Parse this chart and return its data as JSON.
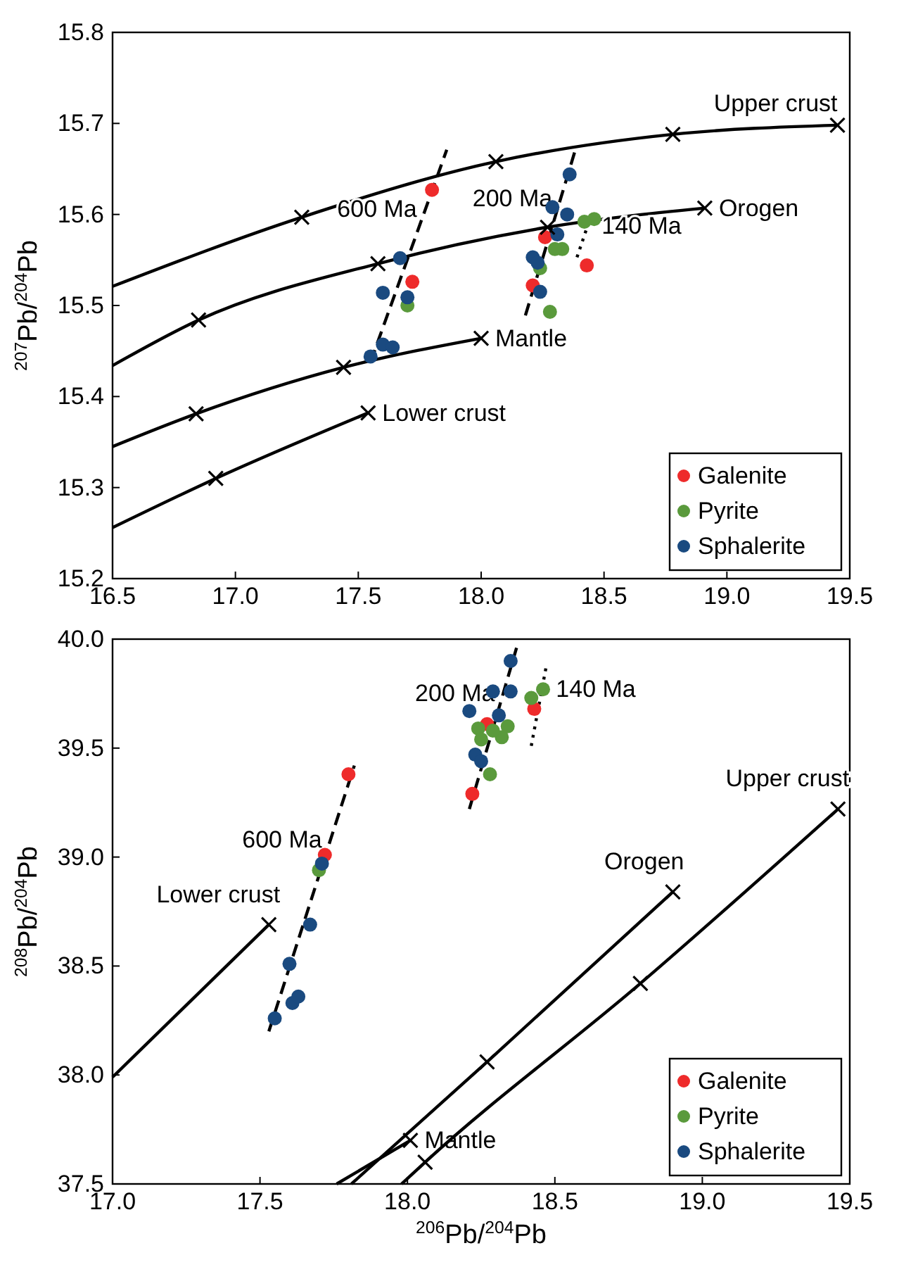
{
  "chart_data": [
    {
      "type": "scatter",
      "ylabel": "$^{207}$Pb/$^{204}$Pb",
      "xlim": [
        16.5,
        19.5
      ],
      "ylim": [
        15.2,
        15.8
      ],
      "xticks": [
        16.5,
        {
          "value": 17,
          "label": "17.0"
        },
        17.5,
        {
          "value": 18,
          "label": "18.0"
        },
        18.5,
        {
          "value": 19,
          "label": "19.0"
        },
        19.5
      ],
      "yticks": [
        15.2,
        15.3,
        15.4,
        15.5,
        15.6,
        15.7,
        15.8
      ],
      "grid": false,
      "legend": "bottom right",
      "series": [
        {
          "type": "line",
          "name": "Upper crust",
          "color": "#000000",
          "marker": "none",
          "line_style": "solid",
          "x": [
            16.5,
            17.27,
            18.06,
            18.78,
            19.45
          ],
          "values": [
            15.521,
            15.597,
            15.658,
            15.688,
            15.698
          ]
        },
        {
          "type": "line",
          "name": "Orogen",
          "color": "#000000",
          "marker": "none",
          "line_style": "solid",
          "x": [
            16.5,
            16.85,
            17.58,
            18.27,
            18.91
          ],
          "values": [
            15.434,
            15.484,
            15.546,
            15.586,
            15.607
          ]
        },
        {
          "type": "line",
          "name": "Mantle",
          "color": "#000000",
          "marker": "none",
          "line_style": "solid",
          "x": [
            16.5,
            16.84,
            17.44,
            18.0
          ],
          "values": [
            15.345,
            15.381,
            15.432,
            15.464
          ]
        },
        {
          "type": "line",
          "name": "Lower crust",
          "color": "#000000",
          "marker": "none",
          "line_style": "solid",
          "x": [
            16.5,
            16.92,
            17.54
          ],
          "values": [
            15.256,
            15.31,
            15.382
          ]
        },
        {
          "type": "line",
          "name": "600 Ma",
          "color": "#000000",
          "marker": "none",
          "line_style": "dashed",
          "x": [
            17.55,
            17.86
          ],
          "values": [
            15.438,
            15.671
          ]
        },
        {
          "type": "line",
          "name": "200 Ma",
          "color": "#000000",
          "marker": "none",
          "line_style": "dashed",
          "x": [
            18.18,
            18.38
          ],
          "values": [
            15.489,
            15.668
          ]
        },
        {
          "type": "line",
          "name": "140 Ma",
          "color": "#000000",
          "marker": "none",
          "line_style": "dotted",
          "x": [
            18.39,
            18.45
          ],
          "values": [
            15.553,
            15.601
          ]
        },
        {
          "name": "Galenite",
          "color": "#ee2b2b",
          "marker": "circle",
          "x": [
            17.8,
            17.72,
            18.26,
            18.43,
            18.21
          ],
          "values": [
            15.627,
            15.526,
            15.575,
            15.544,
            15.522
          ]
        },
        {
          "name": "Pyrite",
          "color": "#5a9a3c",
          "marker": "circle",
          "x": [
            17.7,
            18.46,
            18.42,
            18.33,
            18.3,
            18.28,
            18.24
          ],
          "values": [
            15.5,
            15.595,
            15.592,
            15.562,
            15.562,
            15.493,
            15.541
          ]
        },
        {
          "name": "Sphalerite",
          "color": "#1a4a80",
          "marker": "circle",
          "x": [
            17.67,
            17.6,
            17.7,
            17.55,
            17.6,
            17.64,
            18.36,
            18.29,
            18.35,
            18.31,
            18.21,
            18.23,
            18.24
          ],
          "values": [
            15.552,
            15.514,
            15.509,
            15.444,
            15.457,
            15.454,
            15.644,
            15.608,
            15.6,
            15.578,
            15.553,
            15.547,
            15.515
          ]
        },
        {
          "color": "#000000",
          "marker": "cross",
          "x": [
            17.27,
            18.06,
            18.78,
            19.45,
            16.85,
            17.58,
            18.27,
            18.91,
            16.84,
            17.44,
            18.0,
            16.92,
            17.54
          ],
          "values": [
            15.597,
            15.658,
            15.688,
            15.698,
            15.484,
            15.546,
            15.586,
            15.607,
            15.381,
            15.432,
            15.464,
            15.31,
            15.382
          ]
        }
      ]
    },
    {
      "type": "scatter",
      "ylabel": "$^{208}$Pb/$^{204}$Pb",
      "xlabel": "$^{206}$Pb/$^{204}$Pb",
      "xlim": [
        17,
        19.5
      ],
      "ylim": [
        37.5,
        40
      ],
      "xticks": [
        {
          "value": 17,
          "label": "17.0"
        },
        17.5,
        {
          "value": 18,
          "label": "18.0"
        },
        18.5,
        {
          "value": 19,
          "label": "19.0"
        },
        19.5
      ],
      "yticks": [
        37.5,
        {
          "value": 38,
          "label": "38.0"
        },
        38.5,
        {
          "value": 39,
          "label": "39.0"
        },
        39.5,
        {
          "value": 40,
          "label": "40.0"
        }
      ],
      "grid": false,
      "legend": "bottom right",
      "series": [
        {
          "type": "line",
          "name": "Lower crust",
          "color": "#000000",
          "marker": "none",
          "line_style": "solid",
          "x": [
            17.0,
            17.53
          ],
          "values": [
            37.99,
            38.69
          ]
        },
        {
          "type": "line",
          "name": "Mantle",
          "color": "#000000",
          "marker": "none",
          "line_style": "solid",
          "x": [
            17.76,
            18.01
          ],
          "values": [
            37.5,
            37.7
          ]
        },
        {
          "type": "line",
          "name": "Orogen",
          "color": "#000000",
          "marker": "none",
          "line_style": "solid",
          "x": [
            17.81,
            18.27,
            18.9
          ],
          "values": [
            37.5,
            38.06,
            38.84
          ]
        },
        {
          "type": "line",
          "name": "Upper crust",
          "color": "#000000",
          "marker": "none",
          "line_style": "solid",
          "x": [
            17.98,
            18.06,
            18.79,
            19.46
          ],
          "values": [
            37.5,
            37.6,
            38.42,
            39.22
          ]
        },
        {
          "type": "line",
          "name": "600 Ma",
          "color": "#000000",
          "marker": "none",
          "line_style": "dashed",
          "x": [
            17.53,
            17.82
          ],
          "values": [
            38.2,
            39.42
          ]
        },
        {
          "type": "line",
          "name": "200 Ma",
          "color": "#000000",
          "marker": "none",
          "line_style": "dashed",
          "x": [
            18.21,
            18.37
          ],
          "values": [
            39.22,
            39.96
          ]
        },
        {
          "type": "line",
          "name": "140 Ma",
          "color": "#000000",
          "marker": "none",
          "line_style": "dotted",
          "x": [
            18.42,
            18.47
          ],
          "values": [
            39.51,
            39.87
          ]
        },
        {
          "color": "#000000",
          "marker": "cross",
          "x": [
            17.53,
            18.27,
            18.9,
            18.06,
            18.79,
            19.46,
            18.01
          ],
          "values": [
            38.69,
            38.06,
            38.84,
            37.6,
            38.42,
            39.22,
            37.7
          ]
        },
        {
          "name": "Galenite",
          "color": "#ee2b2b",
          "marker": "circle",
          "x": [
            17.8,
            17.72,
            18.22,
            18.27,
            18.43
          ],
          "values": [
            39.38,
            39.01,
            39.29,
            39.61,
            39.68
          ]
        },
        {
          "name": "Pyrite",
          "color": "#5a9a3c",
          "marker": "circle",
          "x": [
            17.7,
            18.42,
            18.46,
            18.24,
            18.25,
            18.34,
            18.32,
            18.28,
            18.29
          ],
          "values": [
            38.94,
            39.73,
            39.77,
            39.59,
            39.54,
            39.6,
            39.55,
            39.38,
            39.58
          ]
        },
        {
          "name": "Sphalerite",
          "color": "#1a4a80",
          "marker": "circle",
          "x": [
            17.71,
            17.67,
            17.6,
            17.61,
            17.63,
            17.55,
            18.35,
            18.29,
            18.35,
            18.21,
            18.31,
            18.23,
            18.25
          ],
          "values": [
            38.97,
            38.69,
            38.51,
            38.33,
            38.36,
            38.26,
            39.9,
            39.76,
            39.76,
            39.67,
            39.65,
            39.47,
            39.44
          ]
        }
      ]
    }
  ]
}
